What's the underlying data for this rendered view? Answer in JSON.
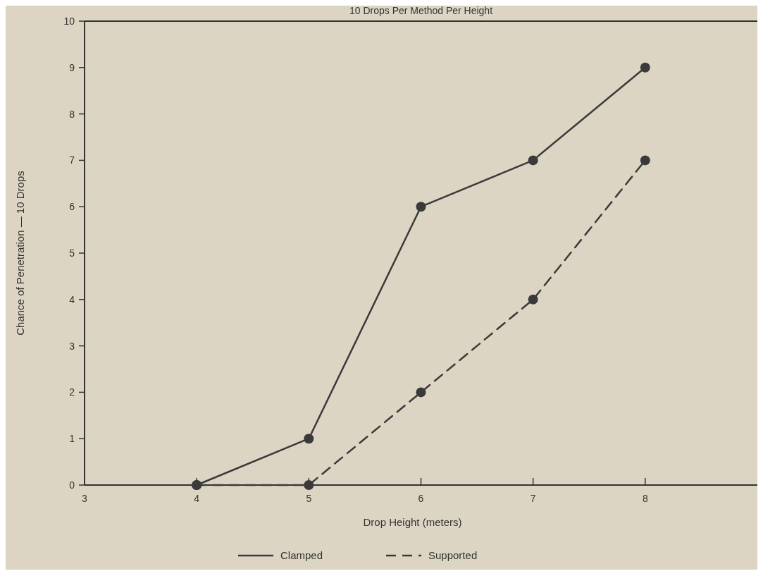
{
  "chart_data": {
    "type": "line",
    "title": "10 Drops Per Method Per Height",
    "xlabel": "Drop Height (meters)",
    "ylabel": "Chance of Penetration — 10 Drops",
    "x": [
      4,
      5,
      6,
      7,
      8
    ],
    "series": [
      {
        "name": "Clamped",
        "color": "#3a3a3a",
        "values": [
          0,
          1,
          6,
          7,
          9
        ],
        "line_style": "solid"
      },
      {
        "name": "Supported",
        "color": "#3a3a3a",
        "values": [
          0,
          0,
          2,
          4,
          7
        ],
        "line_style": "dashed"
      }
    ],
    "xlim": [
      3,
      9
    ],
    "xticks": [
      3,
      4,
      5,
      6,
      7,
      8
    ],
    "ylim": [
      0,
      10
    ],
    "yticks": [
      0,
      1,
      2,
      3,
      4,
      5,
      6,
      7,
      8,
      9,
      10
    ],
    "marker": "circle",
    "legend": "bottom",
    "grid": false
  }
}
